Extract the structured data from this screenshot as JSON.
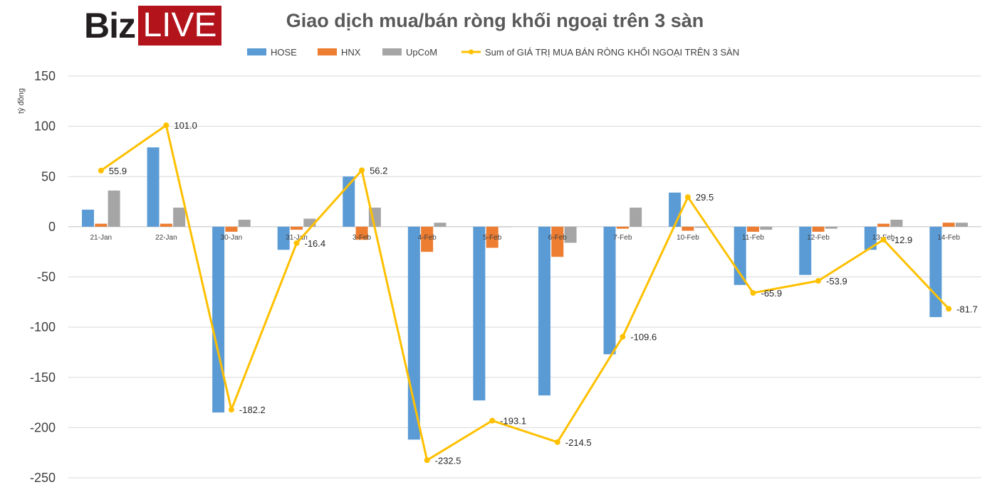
{
  "logo": {
    "part1": "Biz",
    "part2": "LIVE"
  },
  "chart_data": {
    "type": "bar",
    "title": "Giao dịch mua/bán ròng khối ngoại trên 3 sàn",
    "ylabel": "tỷ đồng",
    "xlabel": "",
    "ylim": [
      -250,
      150
    ],
    "yticks": [
      150,
      100,
      50,
      0,
      -50,
      -100,
      -150,
      -200,
      -250
    ],
    "ytick_labels": [
      "150",
      "100",
      "50",
      "0",
      "-50",
      "-100",
      "-150",
      "-200",
      "-250"
    ],
    "grid": true,
    "legend_position": "top",
    "categories": [
      "21-Jan",
      "22-Jan",
      "30-Jan",
      "31-Jan",
      "3-Feb",
      "4-Feb",
      "5-Feb",
      "6-Feb",
      "7-Feb",
      "10-Feb",
      "11-Feb",
      "12-Feb",
      "13-Feb",
      "14-Feb"
    ],
    "series": [
      {
        "name": "HOSE",
        "type": "bar",
        "color": "#5b9bd5",
        "values": [
          17,
          79,
          -185,
          -23,
          50,
          -212,
          -173,
          -168,
          -127,
          34,
          -58,
          -48,
          -23,
          -90
        ]
      },
      {
        "name": "HNX",
        "type": "bar",
        "color": "#ed7d31",
        "values": [
          3,
          3,
          -5,
          -3,
          -13,
          -25,
          -21,
          -30,
          -2,
          -4,
          -5,
          -5,
          3,
          4
        ]
      },
      {
        "name": "UpCoM",
        "type": "bar",
        "color": "#a5a5a5",
        "values": [
          36,
          19,
          7,
          8,
          19,
          4,
          0,
          -16,
          19,
          -1,
          -3,
          -2,
          7,
          4
        ]
      },
      {
        "name": "Sum of GIÁ TRỊ MUA BÁN RÒNG KHỐI NGOẠI TRÊN 3 SÀN",
        "type": "line",
        "color": "#ffc000",
        "values": [
          55.9,
          101.0,
          -182.2,
          -16.4,
          56.2,
          -232.5,
          -193.1,
          -214.5,
          -109.6,
          29.5,
          -65.9,
          -53.9,
          -12.9,
          -81.7
        ]
      }
    ],
    "data_labels": [
      "55.9",
      "101.0",
      "-182.2",
      "-16.4",
      "56.2",
      "-232.5",
      "-193.1",
      "-214.5",
      "-109.6",
      "29.5",
      "-65.9",
      "-53.9",
      "-12.9",
      "-81.7"
    ]
  }
}
